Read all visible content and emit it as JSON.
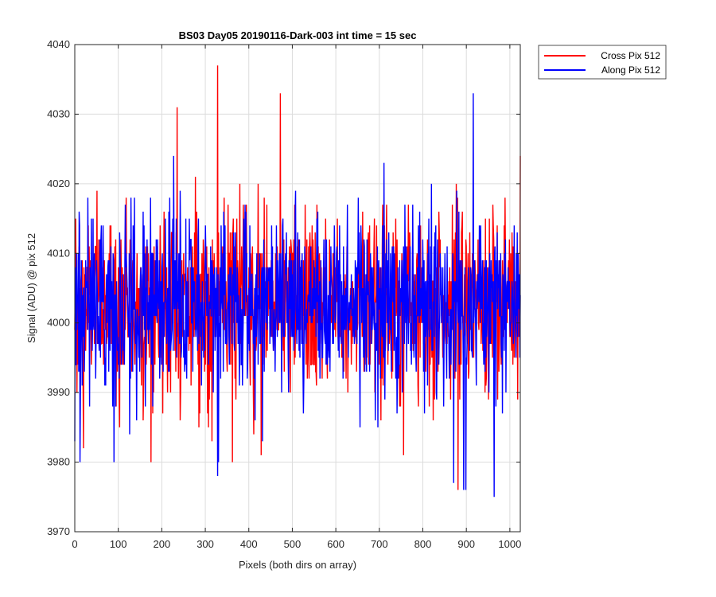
{
  "chart_data": {
    "type": "line",
    "title": "BS03 Day05 20190116-Dark-003 int time = 15 sec",
    "xlabel": "Pixels (both dirs on array)",
    "ylabel": "Signal (ADU) @ pix 512",
    "xlim": [
      0,
      1024
    ],
    "ylim": [
      3970,
      4040
    ],
    "xticks": [
      0,
      100,
      200,
      300,
      400,
      500,
      600,
      700,
      800,
      900,
      1000
    ],
    "yticks": [
      3970,
      3980,
      3990,
      4000,
      4010,
      4020,
      4030,
      4040
    ],
    "grid": true,
    "legend": {
      "placement": "outside-top-right"
    },
    "series": [
      {
        "name": "Cross Pix 512",
        "color": "#ff0000",
        "mean": 4003,
        "std": 6.5,
        "n": 1024,
        "features": [
          {
            "x": 328,
            "y": 4037
          },
          {
            "x": 472,
            "y": 4033
          },
          {
            "x": 235,
            "y": 4031
          },
          {
            "x": 5,
            "y": 3990
          },
          {
            "x": 20,
            "y": 3982
          },
          {
            "x": 175,
            "y": 3980
          },
          {
            "x": 362,
            "y": 3980
          },
          {
            "x": 428,
            "y": 3981
          },
          {
            "x": 755,
            "y": 3981
          },
          {
            "x": 880,
            "y": 3976
          },
          {
            "x": 1024,
            "y": 4024
          }
        ]
      },
      {
        "name": "Along Pix 512",
        "color": "#0000ff",
        "mean": 4003,
        "std": 6.5,
        "n": 1024,
        "features": [
          {
            "x": 0,
            "y": 3983
          },
          {
            "x": 12,
            "y": 3980
          },
          {
            "x": 90,
            "y": 3980
          },
          {
            "x": 328,
            "y": 3978
          },
          {
            "x": 330,
            "y": 3980
          },
          {
            "x": 870,
            "y": 3977
          },
          {
            "x": 893,
            "y": 3976
          },
          {
            "x": 898,
            "y": 3976
          },
          {
            "x": 915,
            "y": 4033
          },
          {
            "x": 963,
            "y": 3975
          },
          {
            "x": 1022,
            "y": 3995
          }
        ]
      }
    ]
  }
}
